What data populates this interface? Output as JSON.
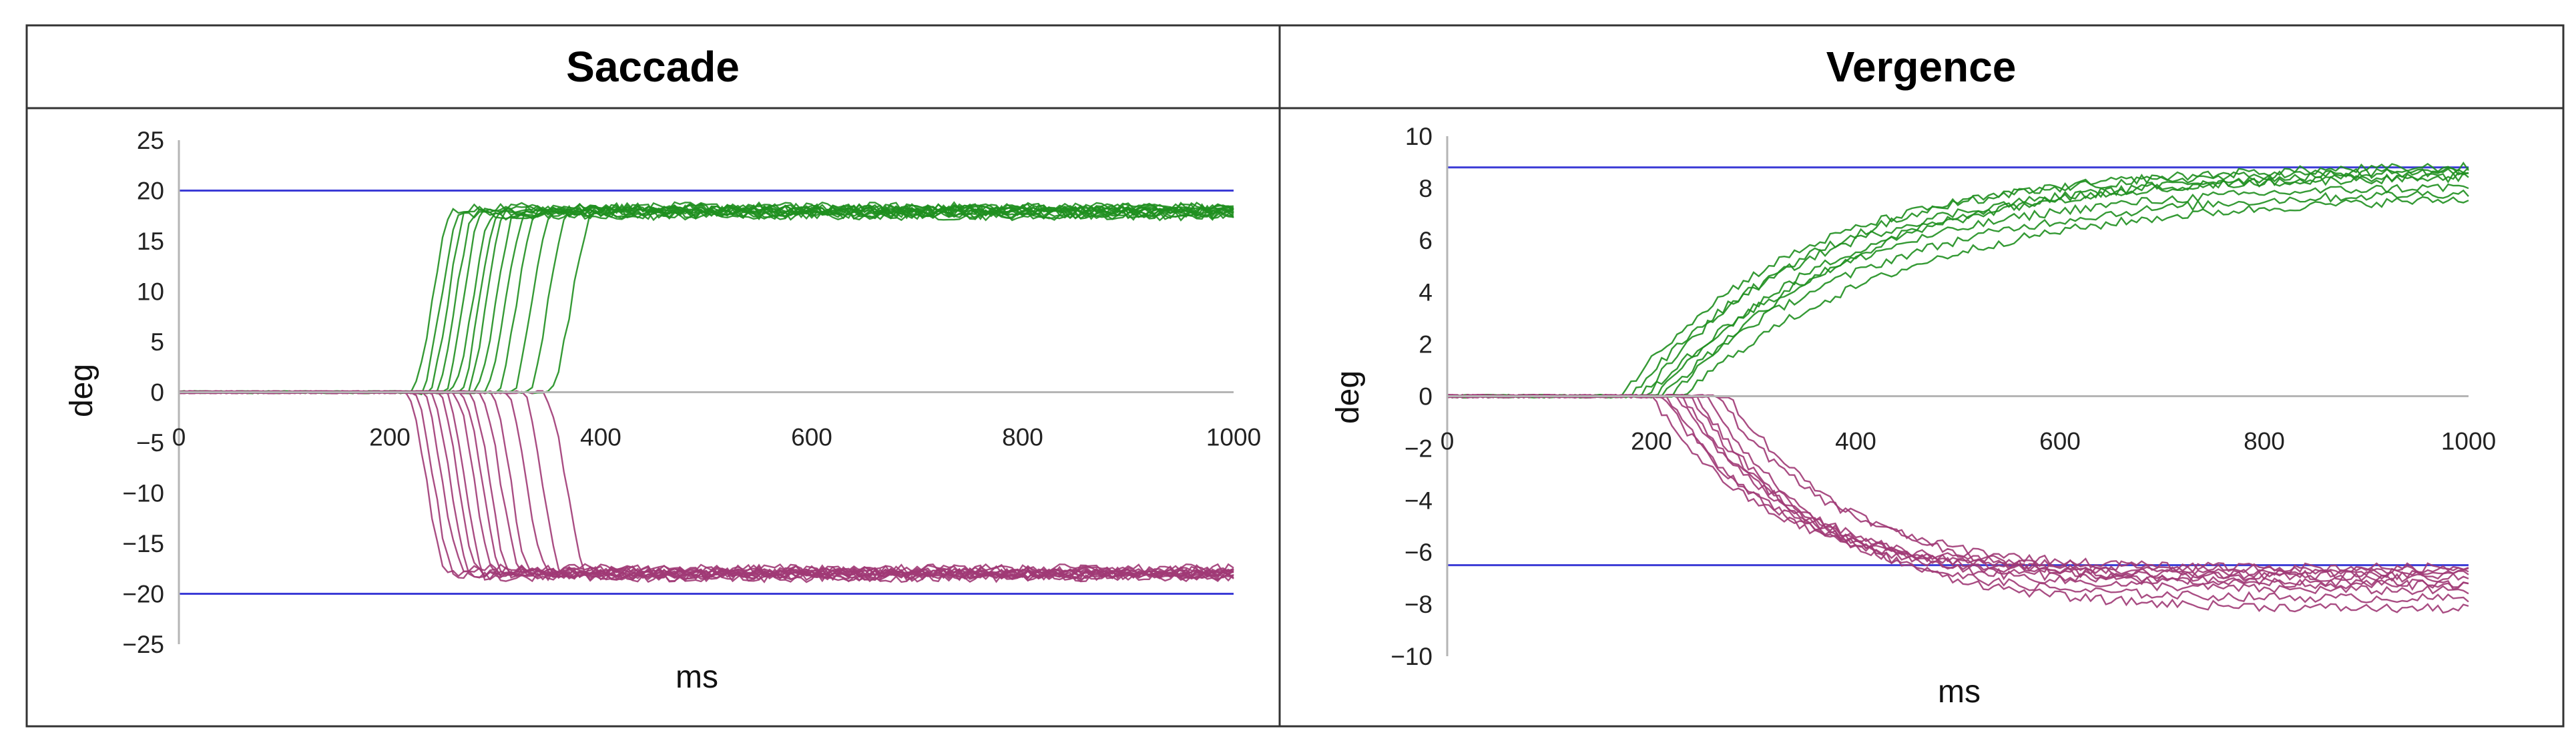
{
  "chart_data": [
    {
      "type": "line",
      "title": "Saccade",
      "xlabel": "ms",
      "ylabel": "deg",
      "xlim": [
        0,
        1000
      ],
      "ylim": [
        -25,
        25
      ],
      "x_ticks": [
        0,
        200,
        400,
        600,
        800,
        1000
      ],
      "y_ticks": [
        25,
        20,
        15,
        10,
        5,
        0,
        -5,
        -10,
        -15,
        -20,
        -25
      ],
      "x_tick_labels": [
        "0",
        "200",
        "400",
        "600",
        "800",
        "1000"
      ],
      "y_tick_labels": [
        "25",
        "20",
        "15",
        "10",
        "5",
        "0",
        "−5",
        "−10",
        "−15",
        "−20",
        "−25"
      ],
      "grid": false,
      "reference_lines": [
        {
          "y": 20,
          "color": "#3b3bd6"
        },
        {
          "y": -20,
          "color": "#3b3bd6"
        }
      ],
      "colors": {
        "up": "#1f8f1f",
        "down": "#a03a76",
        "reference": "#3b3bd6",
        "zero": "#b5b5b5"
      },
      "series_groups": [
        {
          "color": "#1f8f1f",
          "direction": "up",
          "traces": [
            {
              "onset": 220,
              "duration": 40,
              "target": 18.0
            },
            {
              "onset": 228,
              "duration": 40,
              "target": 17.6
            },
            {
              "onset": 235,
              "duration": 40,
              "target": 18.2
            },
            {
              "onset": 242,
              "duration": 40,
              "target": 17.8
            },
            {
              "onset": 250,
              "duration": 40,
              "target": 18.4
            },
            {
              "onset": 258,
              "duration": 40,
              "target": 17.5
            },
            {
              "onset": 265,
              "duration": 40,
              "target": 18.0
            },
            {
              "onset": 272,
              "duration": 40,
              "target": 18.3
            },
            {
              "onset": 280,
              "duration": 40,
              "target": 17.7
            },
            {
              "onset": 290,
              "duration": 40,
              "target": 18.1
            },
            {
              "onset": 300,
              "duration": 40,
              "target": 17.9
            },
            {
              "onset": 315,
              "duration": 40,
              "target": 18.0
            },
            {
              "onset": 330,
              "duration": 40,
              "target": 17.6
            },
            {
              "onset": 350,
              "duration": 45,
              "target": 18.2
            }
          ]
        },
        {
          "color": "#a03a76",
          "direction": "down",
          "traces": [
            {
              "onset": 215,
              "duration": 40,
              "target": -17.8
            },
            {
              "onset": 222,
              "duration": 40,
              "target": -18.0
            },
            {
              "onset": 230,
              "duration": 40,
              "target": -17.5
            },
            {
              "onset": 238,
              "duration": 40,
              "target": -18.2
            },
            {
              "onset": 245,
              "duration": 40,
              "target": -17.9
            },
            {
              "onset": 252,
              "duration": 40,
              "target": -18.3
            },
            {
              "onset": 260,
              "duration": 40,
              "target": -17.7
            },
            {
              "onset": 268,
              "duration": 40,
              "target": -18.0
            },
            {
              "onset": 275,
              "duration": 40,
              "target": -18.1
            },
            {
              "onset": 285,
              "duration": 40,
              "target": -17.6
            },
            {
              "onset": 295,
              "duration": 40,
              "target": -18.2
            },
            {
              "onset": 310,
              "duration": 40,
              "target": -17.9
            },
            {
              "onset": 325,
              "duration": 40,
              "target": -18.0
            },
            {
              "onset": 345,
              "duration": 45,
              "target": -18.4
            }
          ]
        }
      ]
    },
    {
      "type": "line",
      "title": "Vergence",
      "xlabel": "ms",
      "ylabel": "deg",
      "xlim": [
        0,
        1000
      ],
      "ylim": [
        -10,
        10
      ],
      "x_ticks": [
        0,
        200,
        400,
        600,
        800,
        1000
      ],
      "y_ticks": [
        10,
        8,
        6,
        4,
        2,
        0,
        -2,
        -4,
        -6,
        -8,
        -10
      ],
      "x_tick_labels": [
        "0",
        "200",
        "400",
        "600",
        "800",
        "1000"
      ],
      "y_tick_labels": [
        "10",
        "8",
        "6",
        "4",
        "2",
        "0",
        "−2",
        "−4",
        "−6",
        "−8",
        "−10"
      ],
      "grid": false,
      "reference_lines": [
        {
          "y": 8.8,
          "color": "#3b3bd6"
        },
        {
          "y": -6.5,
          "color": "#3b3bd6"
        }
      ],
      "colors": {
        "up": "#1f8f1f",
        "down": "#a03a76",
        "reference": "#3b3bd6",
        "zero": "#b5b5b5"
      },
      "series_groups": [
        {
          "color": "#1f8f1f",
          "direction": "up",
          "traces": [
            {
              "onset": 170,
              "tau": 170,
              "target": 8.7
            },
            {
              "onset": 180,
              "tau": 180,
              "target": 8.5
            },
            {
              "onset": 190,
              "tau": 175,
              "target": 8.9
            },
            {
              "onset": 195,
              "tau": 200,
              "target": 8.2
            },
            {
              "onset": 205,
              "tau": 185,
              "target": 8.6
            },
            {
              "onset": 210,
              "tau": 210,
              "target": 8.0
            },
            {
              "onset": 220,
              "tau": 190,
              "target": 8.8
            },
            {
              "onset": 230,
              "tau": 220,
              "target": 7.8
            }
          ]
        },
        {
          "color": "#a03a76",
          "direction": "down",
          "traces": [
            {
              "onset": 200,
              "tau": 110,
              "target": -6.8
            },
            {
              "onset": 210,
              "tau": 120,
              "target": -7.2
            },
            {
              "onset": 215,
              "tau": 100,
              "target": -6.6
            },
            {
              "onset": 225,
              "tau": 130,
              "target": -7.5
            },
            {
              "onset": 230,
              "tau": 110,
              "target": -6.9
            },
            {
              "onset": 240,
              "tau": 120,
              "target": -7.8
            },
            {
              "onset": 245,
              "tau": 105,
              "target": -7.0
            },
            {
              "onset": 255,
              "tau": 125,
              "target": -8.2
            },
            {
              "onset": 265,
              "tau": 115,
              "target": -6.7
            },
            {
              "onset": 275,
              "tau": 130,
              "target": -7.3
            }
          ]
        }
      ]
    }
  ]
}
